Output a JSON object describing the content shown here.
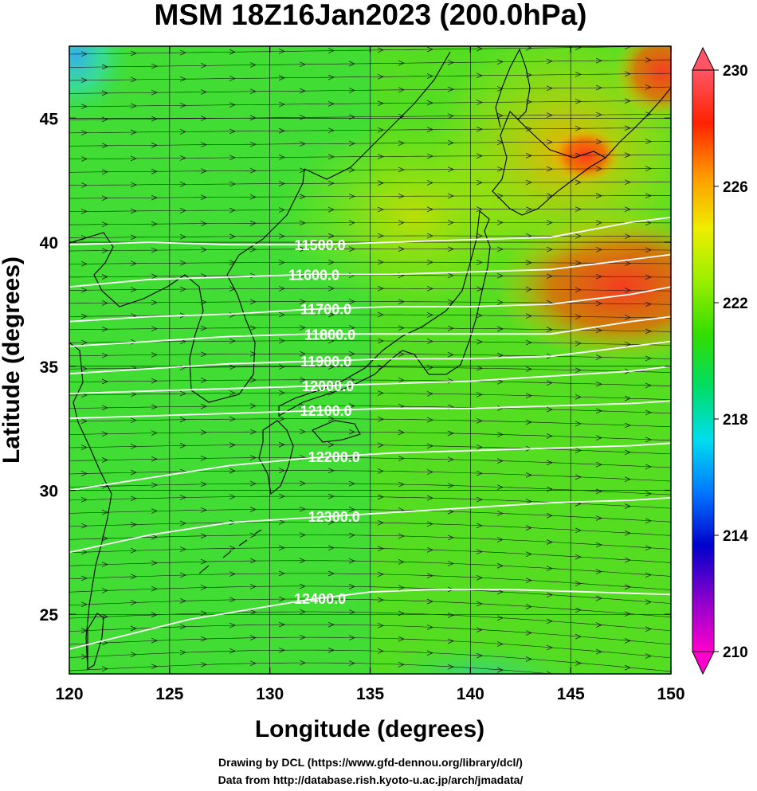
{
  "title": "MSM 18Z16Jan2023 (200.0hPa)",
  "xlabel": "Longitude (degrees)",
  "ylabel": "Latitude  (degrees)",
  "credits": [
    "Drawing by DCL (https://www.gfd-dennou.org/library/dcl/)",
    "Data from http://database.rish.kyoto-u.ac.jp/arch/jmadata/"
  ],
  "chart_data": {
    "type": "heatmap",
    "xlim": [
      120,
      150
    ],
    "ylim": [
      22.6,
      47.9
    ],
    "x_ticks": [
      120,
      125,
      130,
      135,
      140,
      145,
      150
    ],
    "y_ticks": [
      25,
      30,
      35,
      40,
      45
    ],
    "x_tick_labels": [
      "120",
      "125",
      "130",
      "135",
      "140",
      "145",
      "150"
    ],
    "y_tick_labels": [
      "25",
      "30",
      "35",
      "40",
      "45"
    ],
    "shading_variable": "temperature",
    "colorbar": {
      "min": 210,
      "max": 230,
      "ticks": [
        210,
        214,
        218,
        222,
        226,
        230
      ],
      "tick_labels": [
        "210",
        "214",
        "218",
        "222",
        "226",
        "230"
      ],
      "colors": [
        "#ff00cc",
        "#8800cc",
        "#0000cc",
        "#0077ff",
        "#00ddee",
        "#00dd66",
        "#33dd00",
        "#99ee00",
        "#eeee00",
        "#ff9900",
        "#ff2200",
        "#ff5566"
      ]
    },
    "contours": [
      {
        "level": 11500,
        "label": "11500.0",
        "label_lon": 132.5,
        "points": [
          [
            120,
            39.9
          ],
          [
            124,
            40.0
          ],
          [
            128,
            39.9
          ],
          [
            132,
            39.9
          ],
          [
            136,
            40.0
          ],
          [
            140,
            40.1
          ],
          [
            144,
            40.2
          ],
          [
            148,
            40.8
          ],
          [
            150,
            41.0
          ]
        ]
      },
      {
        "level": 11600,
        "label": "11600.0",
        "label_lon": 132.2,
        "points": [
          [
            120,
            38.2
          ],
          [
            124,
            38.5
          ],
          [
            128,
            38.6
          ],
          [
            132,
            38.7
          ],
          [
            136,
            38.7
          ],
          [
            140,
            38.8
          ],
          [
            144,
            38.9
          ],
          [
            148,
            39.3
          ],
          [
            150,
            39.5
          ]
        ]
      },
      {
        "level": 11700,
        "label": "11700.0",
        "label_lon": 132.8,
        "points": [
          [
            120,
            36.8
          ],
          [
            124,
            37.0
          ],
          [
            128,
            37.1
          ],
          [
            132,
            37.3
          ],
          [
            136,
            37.4
          ],
          [
            140,
            37.4
          ],
          [
            144,
            37.5
          ],
          [
            148,
            37.9
          ],
          [
            150,
            38.2
          ]
        ]
      },
      {
        "level": 11800,
        "label": "11800.0",
        "label_lon": 133.0,
        "points": [
          [
            120,
            35.8
          ],
          [
            124,
            36.0
          ],
          [
            128,
            36.2
          ],
          [
            132,
            36.3
          ],
          [
            136,
            36.3
          ],
          [
            140,
            36.3
          ],
          [
            144,
            36.3
          ],
          [
            148,
            36.8
          ],
          [
            150,
            37.0
          ]
        ]
      },
      {
        "level": 11900,
        "label": "11900.0",
        "label_lon": 132.8,
        "points": [
          [
            120,
            34.7
          ],
          [
            124,
            34.9
          ],
          [
            128,
            35.1
          ],
          [
            132,
            35.2
          ],
          [
            136,
            35.3
          ],
          [
            140,
            35.3
          ],
          [
            144,
            35.4
          ],
          [
            148,
            35.8
          ],
          [
            150,
            36.0
          ]
        ]
      },
      {
        "level": 12000,
        "label": "12000.0",
        "label_lon": 132.9,
        "points": [
          [
            120,
            33.9
          ],
          [
            124,
            34.0
          ],
          [
            128,
            34.1
          ],
          [
            132,
            34.2
          ],
          [
            136,
            34.3
          ],
          [
            140,
            34.4
          ],
          [
            144,
            34.6
          ],
          [
            148,
            34.8
          ],
          [
            150,
            35.0
          ]
        ]
      },
      {
        "level": 12100,
        "label": "12100.0",
        "label_lon": 132.8,
        "points": [
          [
            120,
            32.9
          ],
          [
            124,
            33.0
          ],
          [
            128,
            33.1
          ],
          [
            132,
            33.2
          ],
          [
            136,
            33.3
          ],
          [
            140,
            33.3
          ],
          [
            144,
            33.4
          ],
          [
            148,
            33.5
          ],
          [
            150,
            33.6
          ]
        ]
      },
      {
        "level": 12200,
        "label": "12200.0",
        "label_lon": 133.2,
        "points": [
          [
            120,
            30.0
          ],
          [
            124,
            30.5
          ],
          [
            128,
            31.0
          ],
          [
            132,
            31.3
          ],
          [
            136,
            31.5
          ],
          [
            140,
            31.6
          ],
          [
            144,
            31.7
          ],
          [
            148,
            31.8
          ],
          [
            150,
            31.9
          ]
        ]
      },
      {
        "level": 12300,
        "label": "12300.0",
        "label_lon": 133.2,
        "points": [
          [
            120,
            27.5
          ],
          [
            124,
            28.2
          ],
          [
            128,
            28.7
          ],
          [
            132,
            28.9
          ],
          [
            136,
            29.1
          ],
          [
            140,
            29.3
          ],
          [
            144,
            29.5
          ],
          [
            148,
            29.6
          ],
          [
            150,
            29.7
          ]
        ]
      },
      {
        "level": 12400,
        "label": "12400.0",
        "label_lon": 132.5,
        "points": [
          [
            120,
            23.6
          ],
          [
            123,
            24.2
          ],
          [
            126,
            24.8
          ],
          [
            129,
            25.2
          ],
          [
            132,
            25.6
          ],
          [
            135,
            25.9
          ],
          [
            138,
            26.0
          ],
          [
            142,
            26.0
          ],
          [
            146,
            25.9
          ],
          [
            150,
            25.8
          ]
        ]
      }
    ],
    "wind": "streamline arrows from west to east"
  }
}
